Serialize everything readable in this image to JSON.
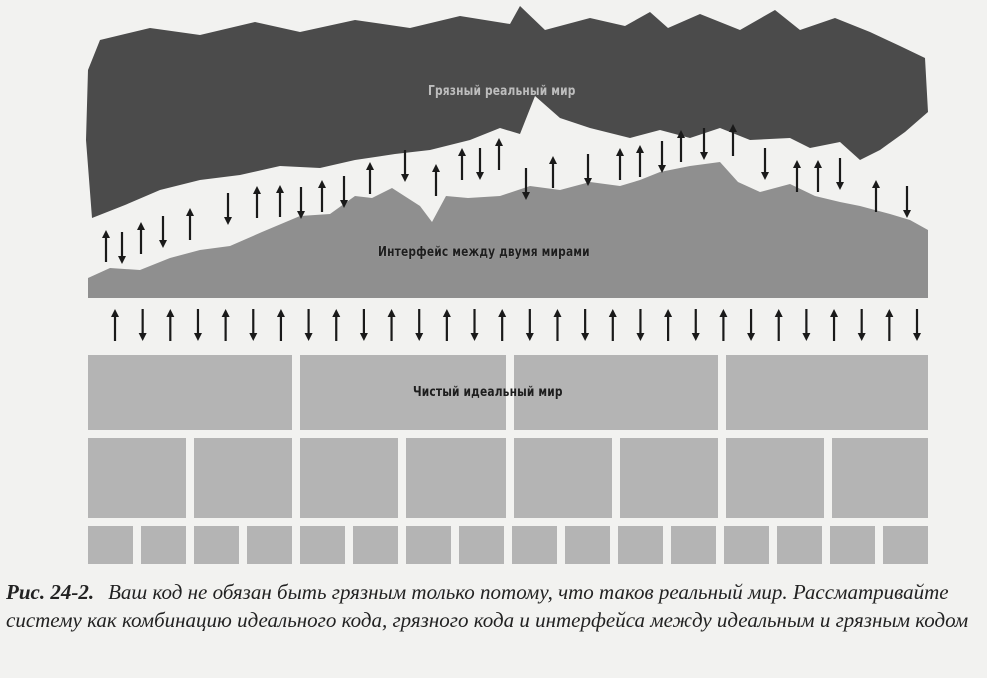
{
  "figure": {
    "dirty_world_label": "Грязный реальный мир",
    "interface_label": "Интерфейс между двумя мирами",
    "clean_world_label": "Чистый идеальный мир"
  },
  "caption": {
    "number": "Рис. 24-2.",
    "text": "Ваш код не обязан быть грязным только потому, что таков реальный мир. Рассматривайте систему как комбинацию идеального кода, грязного кода и интерфейса между идеальным и грязным кодом"
  },
  "colors": {
    "dirty_world": "#4b4b4b",
    "interface": "#8f8f8f",
    "clean_world": "#b4b4b4",
    "arrows": "#1a1a1a"
  },
  "icons": {
    "up": "arrow-up-icon",
    "down": "arrow-down-icon"
  }
}
